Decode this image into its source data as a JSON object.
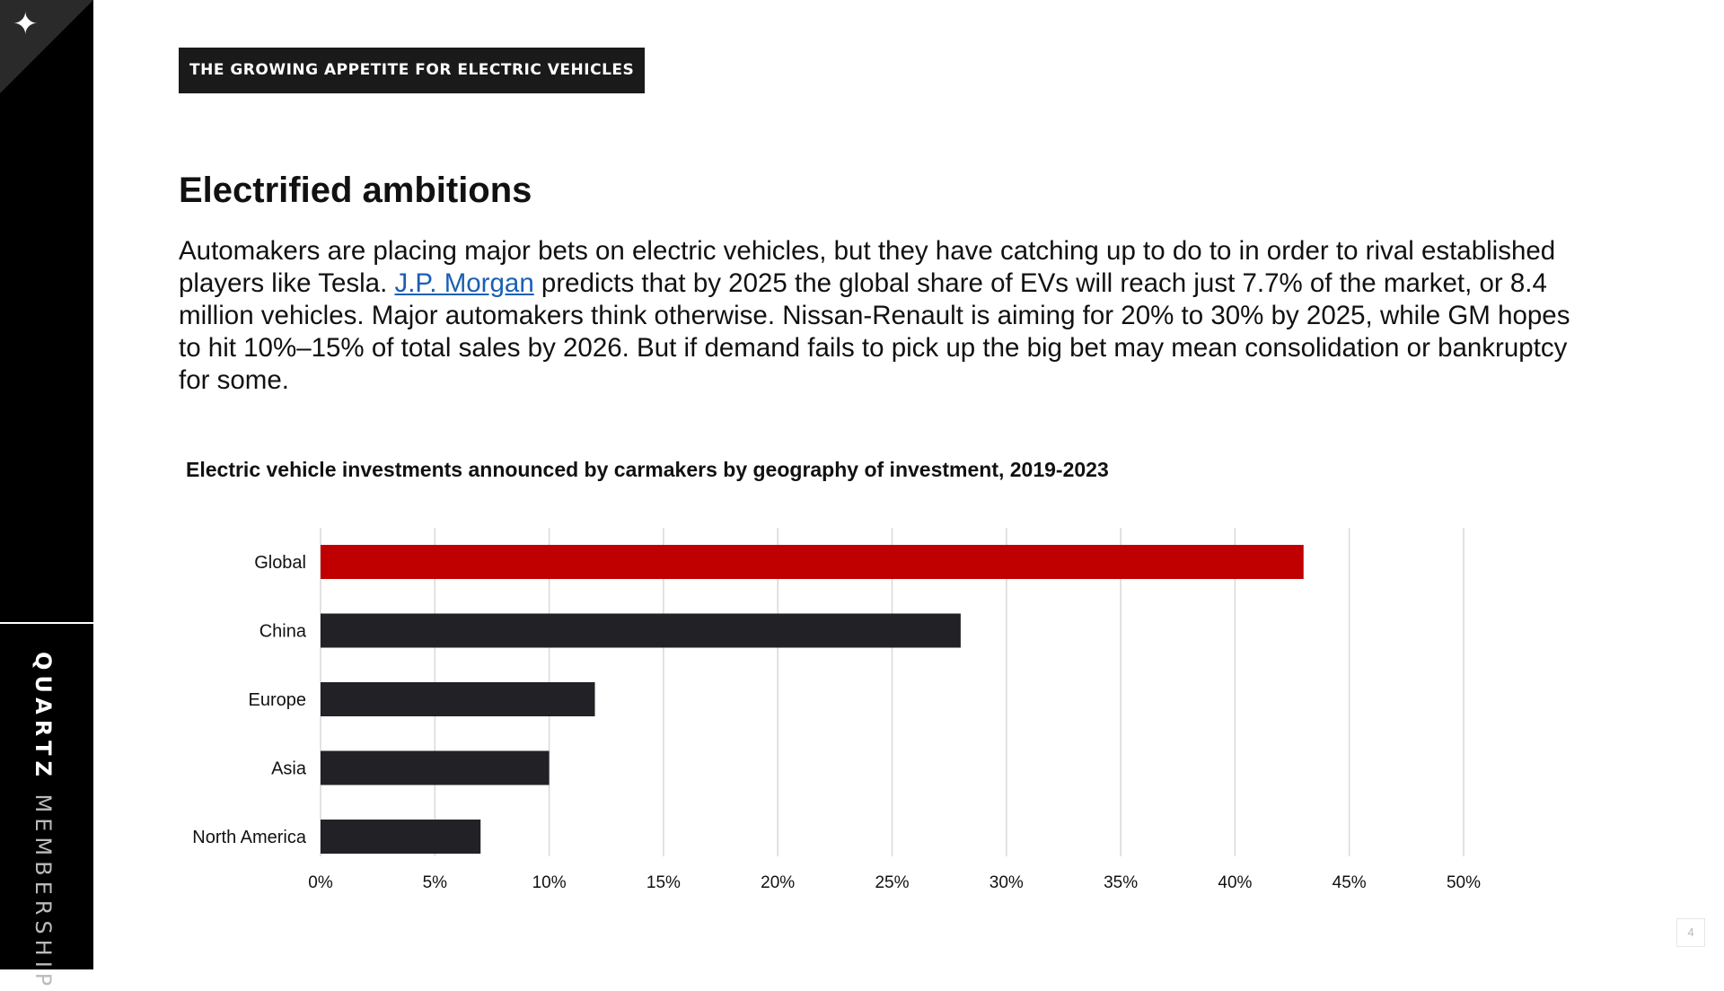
{
  "sidebar": {
    "icon": "sparkle-icon",
    "brand_strong": "QUARTZ",
    "brand_light": "MEMBERSHIP"
  },
  "section_tag": "THE GROWING APPETITE FOR ELECTRIC VEHICLES",
  "headline": "Electrified ambitions",
  "body": {
    "before_link": "Automakers are placing major bets on electric vehicles, but they have catching up to do to in order to rival established players like Tesla. ",
    "link_text": "J.P. Morgan",
    "after_link": " predicts that by 2025 the global share of EVs will reach just 7.7% of the market, or 8.4 million vehicles. Major automakers think otherwise. Nissan-Renault is aiming for 20% to 30% by 2025, while GM hopes to hit 10%–15% of total sales by 2026. But if demand fails to pick up the big bet may mean consolidation or bankruptcy for some."
  },
  "chart_data": {
    "type": "bar",
    "orientation": "horizontal",
    "title": "Electric vehicle investments announced by carmakers by geography of investment, 2019-2023",
    "categories": [
      "Global",
      "China",
      "Europe",
      "Asia",
      "North America"
    ],
    "values": [
      43,
      28,
      12,
      10,
      7
    ],
    "xlim": [
      0,
      50
    ],
    "xticks": [
      "0%",
      "5%",
      "10%",
      "15%",
      "20%",
      "25%",
      "30%",
      "35%",
      "40%",
      "45%",
      "50%"
    ],
    "grid": true,
    "colors": {
      "highlight": "#c00000",
      "default": "#212126",
      "grid": "#d9d9d9"
    },
    "highlight_index": 0
  },
  "page_number": "4"
}
